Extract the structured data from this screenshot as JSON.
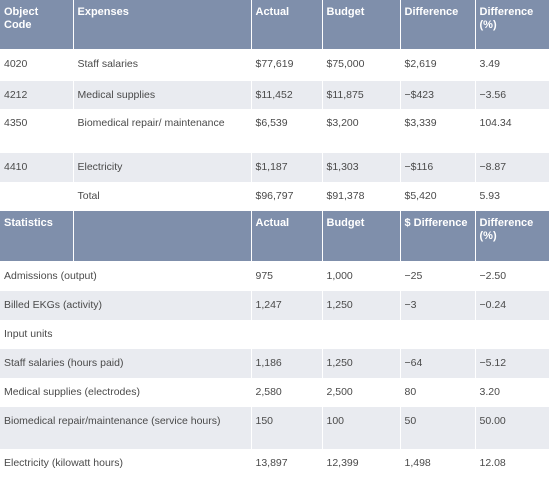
{
  "expenses_table": {
    "headers": [
      "Object Code",
      "Expenses",
      "Actual",
      "Budget",
      "Difference",
      "Difference (%)"
    ],
    "rows": [
      [
        "4020",
        "Staff salaries",
        "$77,619",
        "$75,000",
        "$2,619",
        "3.49"
      ],
      [
        "4212",
        "Medical supplies",
        "$11,452",
        "$11,875",
        "−$423",
        "−3.56"
      ],
      [
        "4350",
        "Biomedical repair/ maintenance",
        "$6,539",
        "$3,200",
        "$3,339",
        "104.34"
      ],
      [
        "4410",
        "Electricity",
        "$1,187",
        "$1,303",
        "−$116",
        "−8.87"
      ],
      [
        "",
        "Total",
        "$96,797",
        "$91,378",
        "$5,420",
        "5.93"
      ]
    ]
  },
  "statistics_table": {
    "headers": [
      "Statistics",
      "",
      "Actual",
      "Budget",
      "$ Difference",
      "Difference (%)"
    ],
    "rows": [
      [
        "Admissions (output)",
        "975",
        "1,000",
        "−25",
        "−2.50"
      ],
      [
        "Billed EKGs (activity)",
        "1,247",
        "1,250",
        "−3",
        "−0.24"
      ],
      [
        "Input units",
        "",
        "",
        "",
        ""
      ],
      [
        "Staff salaries (hours paid)",
        "1,186",
        "1,250",
        "−64",
        "−5.12"
      ],
      [
        "Medical supplies (electrodes)",
        "2,580",
        "2,500",
        "80",
        "3.20"
      ],
      [
        "Biomedical repair/maintenance (service hours)",
        "150",
        "100",
        "50",
        "50.00"
      ],
      [
        "Electricity (kilowatt hours)",
        "13,897",
        "12,399",
        "1,498",
        "12.08"
      ]
    ]
  }
}
